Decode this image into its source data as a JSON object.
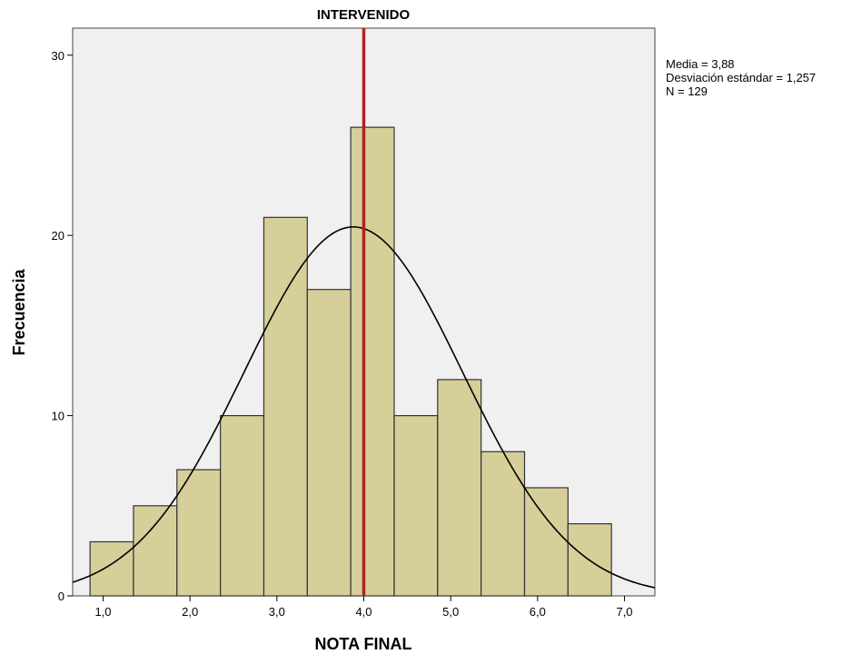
{
  "chart_data": {
    "type": "histogram",
    "title": "INTERVENIDO",
    "xlabel": "NOTA FINAL",
    "ylabel": "Frecuencia",
    "xlim": [
      0.65,
      7.35
    ],
    "ylim": [
      0,
      31.5
    ],
    "x_ticks": [
      1,
      2,
      3,
      4,
      5,
      6,
      7
    ],
    "x_tick_labels": [
      "1,0",
      "2,0",
      "3,0",
      "4,0",
      "5,0",
      "6,0",
      "7,0"
    ],
    "y_ticks": [
      0,
      10,
      20,
      30
    ],
    "y_tick_labels": [
      "0",
      "10",
      "20",
      "30"
    ],
    "bins": [
      {
        "start": 0.85,
        "end": 1.35,
        "count": 3
      },
      {
        "start": 1.35,
        "end": 1.85,
        "count": 5
      },
      {
        "start": 1.85,
        "end": 2.35,
        "count": 7
      },
      {
        "start": 2.35,
        "end": 2.85,
        "count": 10
      },
      {
        "start": 2.85,
        "end": 3.35,
        "count": 21
      },
      {
        "start": 3.35,
        "end": 3.85,
        "count": 17
      },
      {
        "start": 3.85,
        "end": 4.35,
        "count": 26
      },
      {
        "start": 4.35,
        "end": 4.85,
        "count": 10
      },
      {
        "start": 4.85,
        "end": 5.35,
        "count": 12
      },
      {
        "start": 5.35,
        "end": 5.85,
        "count": 8
      },
      {
        "start": 5.85,
        "end": 6.35,
        "count": 6
      },
      {
        "start": 6.35,
        "end": 6.85,
        "count": 4
      }
    ],
    "normal_curve": {
      "mean": 3.88,
      "sd": 1.257,
      "n": 129,
      "bin_width": 0.5
    },
    "reference_line": {
      "x": 4.0,
      "color": "#b22222"
    },
    "stats": {
      "mean_label": "Media = 3,88",
      "sd_label": "Desviación estándar = 1,257",
      "n_label": "N = 129"
    },
    "colors": {
      "bar_fill": "#d6cf9a",
      "bar_stroke": "#333333",
      "plot_background": "#f0f0f0",
      "curve": "#000000",
      "reference_line": "#b22222"
    },
    "grid": false,
    "legend": "none"
  }
}
